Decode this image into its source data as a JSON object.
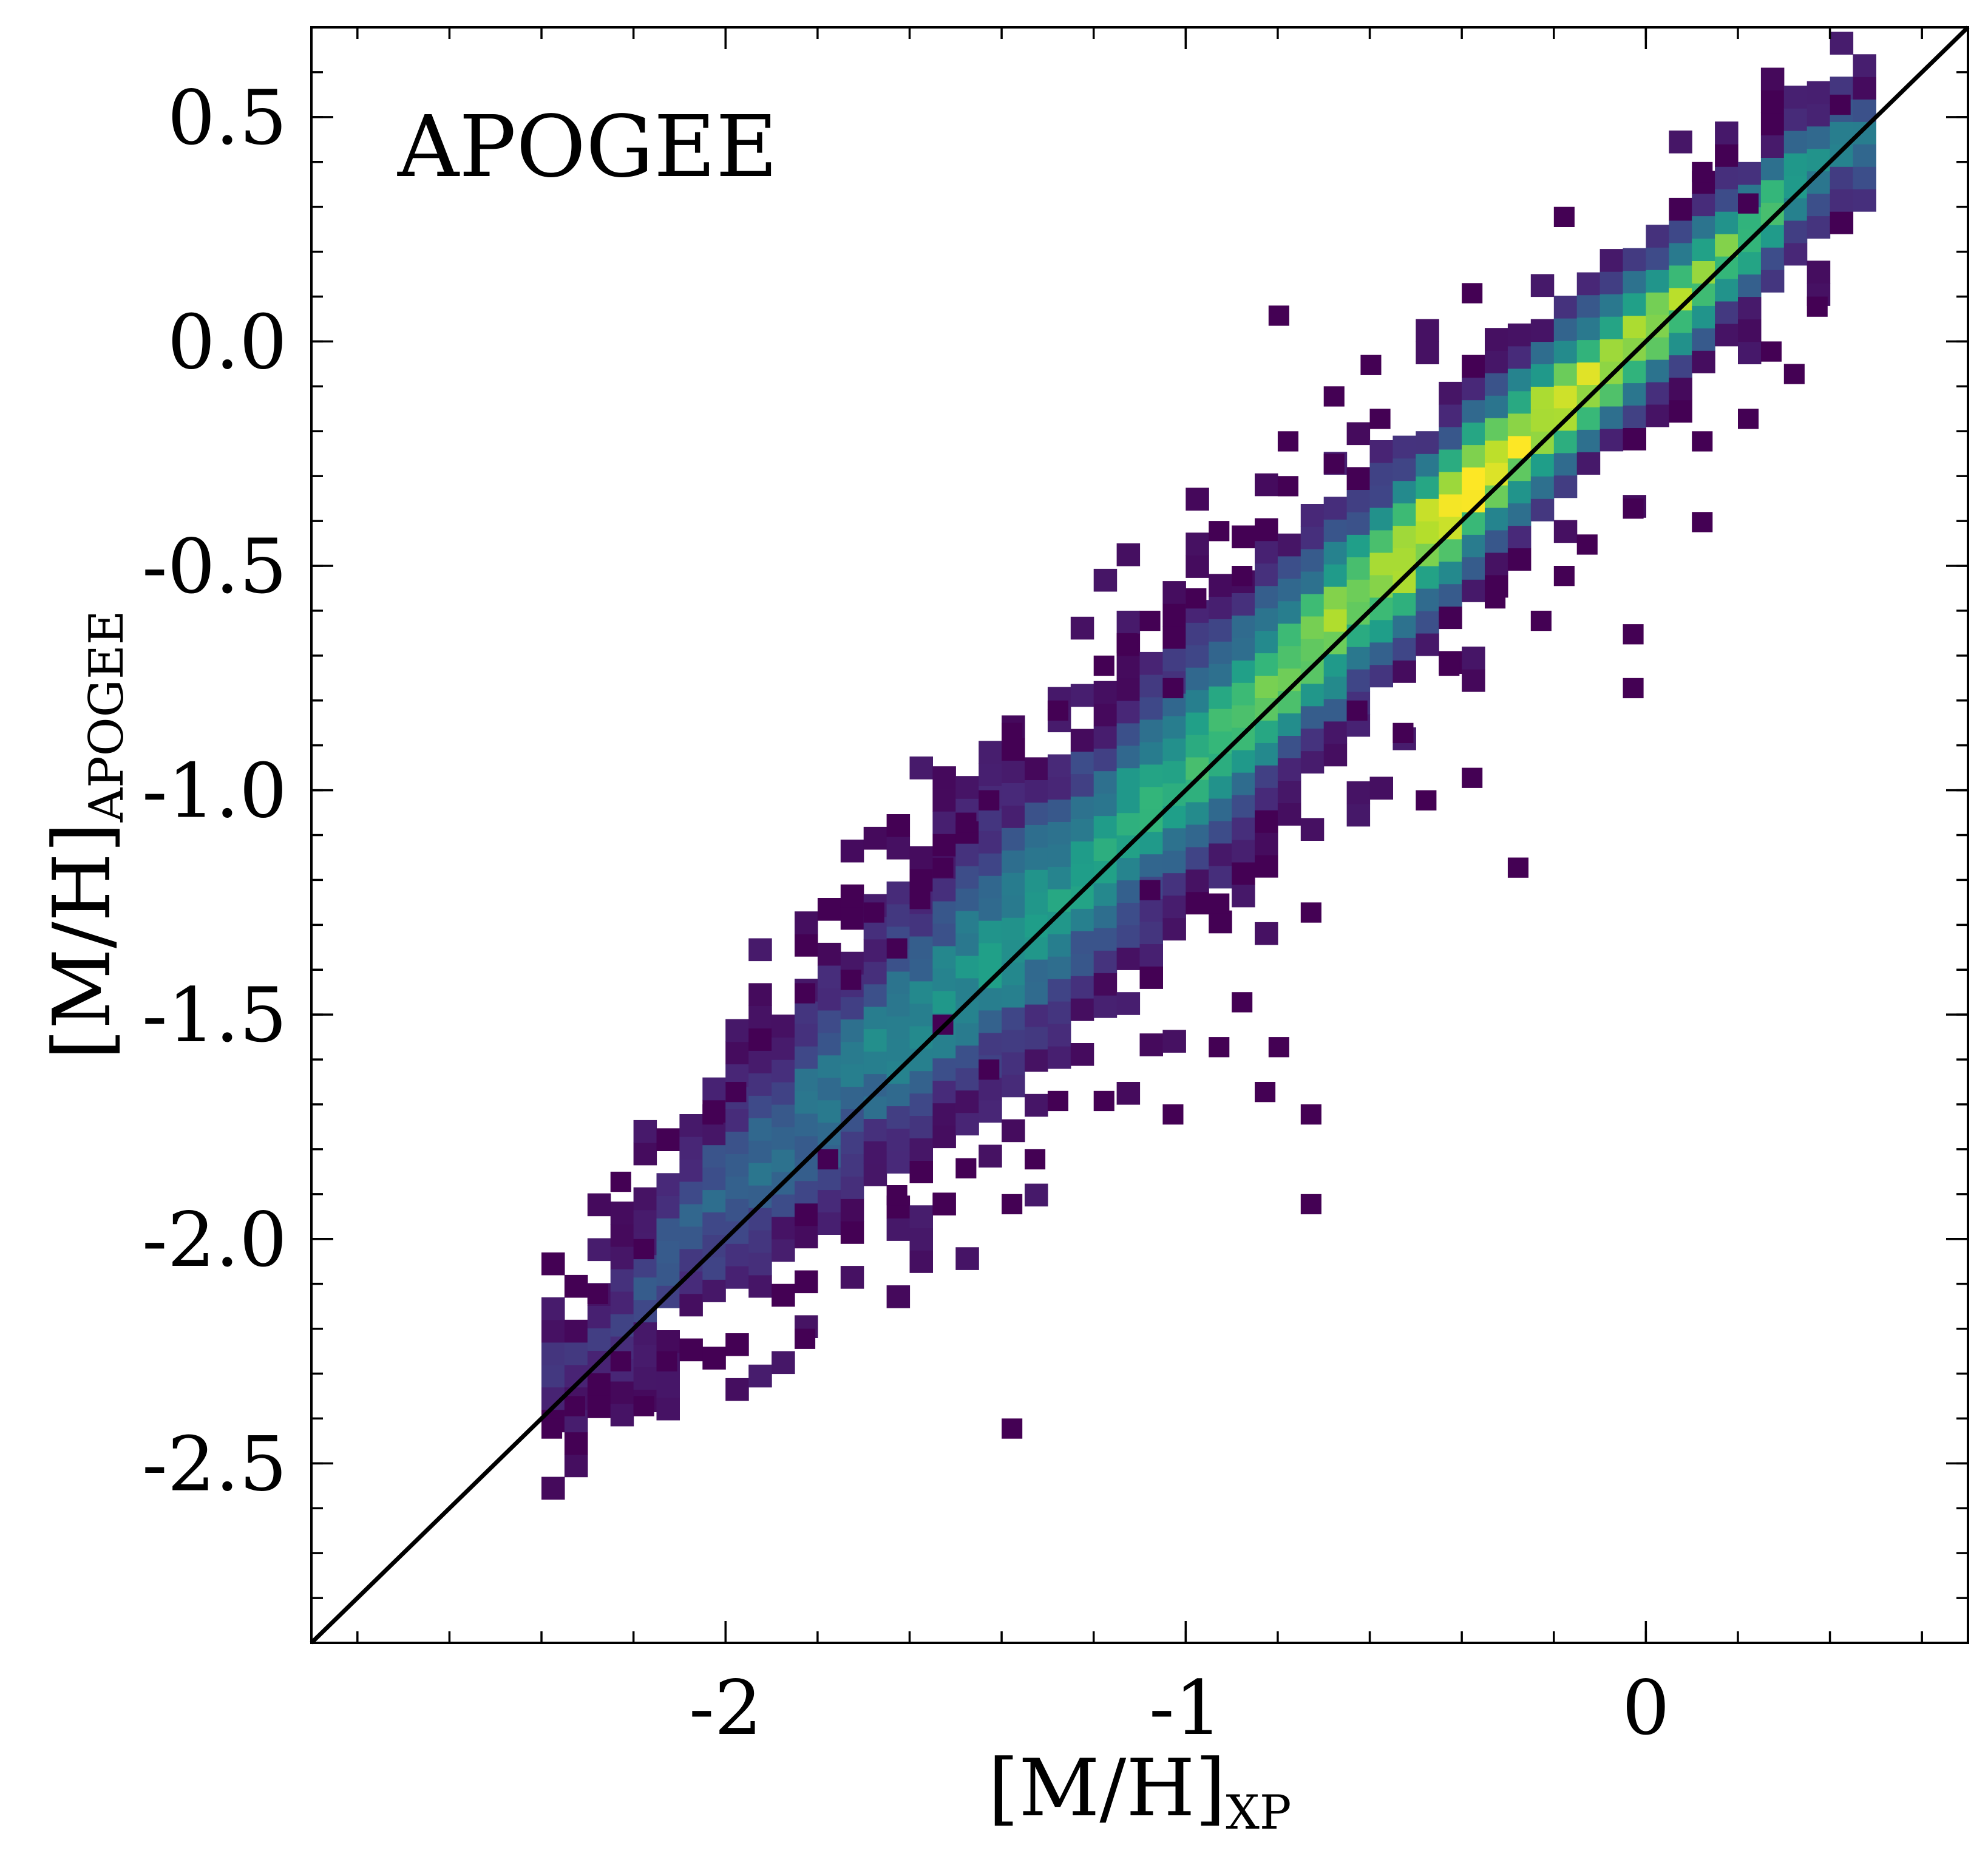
{
  "chart_data": {
    "type": "heatmap",
    "panel_label": "APOGEE",
    "xlabel": {
      "main": "[M/H]",
      "sub": "XP"
    },
    "ylabel": {
      "main": "[M/H]",
      "sub": "APOGEE"
    },
    "xlim": [
      -2.9,
      0.7
    ],
    "ylim": [
      -2.9,
      0.7
    ],
    "x_ticks": [
      {
        "value": -2,
        "label": "-2"
      },
      {
        "value": -1,
        "label": "-1"
      },
      {
        "value": 0,
        "label": "0"
      }
    ],
    "y_ticks": [
      {
        "value": 0.5,
        "label": "0.5"
      },
      {
        "value": 0.0,
        "label": "0.0"
      },
      {
        "value": -0.5,
        "label": "-0.5"
      },
      {
        "value": -1.0,
        "label": "-1.0"
      },
      {
        "value": -1.5,
        "label": "-1.5"
      },
      {
        "value": -2.0,
        "label": "-2.0"
      },
      {
        "value": -2.5,
        "label": "-2.5"
      }
    ],
    "x_minor_step": 0.2,
    "y_minor_step": 0.1,
    "reference_line": {
      "type": "one-to-one",
      "from": [
        -2.9,
        -2.9
      ],
      "to": [
        0.7,
        0.7
      ]
    },
    "grid": false,
    "colormap": "viridis",
    "density_ridge": [
      {
        "x": -2.35,
        "y": -2.3,
        "width": 0.07,
        "peak": 0.12
      },
      {
        "x": -2.05,
        "y": -1.95,
        "width": 0.11,
        "peak": 0.3
      },
      {
        "x": -1.75,
        "y": -1.65,
        "width": 0.14,
        "peak": 0.42
      },
      {
        "x": -1.45,
        "y": -1.4,
        "width": 0.16,
        "peak": 0.5
      },
      {
        "x": -1.15,
        "y": -1.1,
        "width": 0.15,
        "peak": 0.58
      },
      {
        "x": -0.9,
        "y": -0.85,
        "width": 0.14,
        "peak": 0.7
      },
      {
        "x": -0.65,
        "y": -0.6,
        "width": 0.12,
        "peak": 0.85
      },
      {
        "x": -0.45,
        "y": -0.4,
        "width": 0.11,
        "peak": 1.0
      },
      {
        "x": -0.25,
        "y": -0.2,
        "width": 0.1,
        "peak": 0.95
      },
      {
        "x": 0.0,
        "y": 0.02,
        "width": 0.09,
        "peak": 0.85
      },
      {
        "x": 0.2,
        "y": 0.22,
        "width": 0.08,
        "peak": 0.75
      },
      {
        "x": 0.4,
        "y": 0.42,
        "width": 0.07,
        "peak": 0.45
      }
    ],
    "outlier_bins": [
      [
        -0.82,
        0.03
      ],
      [
        -0.62,
        -0.08
      ],
      [
        -0.7,
        -0.15
      ],
      [
        -0.8,
        -0.25
      ],
      [
        -0.95,
        -0.45
      ],
      [
        -1.1,
        -0.65
      ],
      [
        -1.15,
        -0.7
      ],
      [
        -1.05,
        -0.8
      ],
      [
        -1.4,
        -0.9
      ],
      [
        -1.5,
        -1.1
      ],
      [
        -1.55,
        -1.2
      ],
      [
        -1.6,
        -1.27
      ],
      [
        -1.65,
        -1.38
      ],
      [
        -1.75,
        -1.45
      ],
      [
        -2.25,
        -1.9
      ],
      [
        -1.4,
        -1.95
      ],
      [
        -1.55,
        -1.95
      ],
      [
        -1.65,
        -1.93
      ],
      [
        -0.75,
        -1.75
      ],
      [
        -0.85,
        -1.7
      ],
      [
        -0.95,
        -1.6
      ],
      [
        -0.9,
        -1.5
      ],
      [
        -0.82,
        -1.6
      ],
      [
        -1.05,
        -1.75
      ],
      [
        -1.2,
        -1.72
      ],
      [
        -1.45,
        -1.65
      ],
      [
        -1.3,
        -1.72
      ],
      [
        -1.35,
        -1.85
      ],
      [
        -1.5,
        -1.87
      ],
      [
        -1.8,
        -1.85
      ],
      [
        -0.75,
        -1.95
      ],
      [
        -2.15,
        -2.3
      ],
      [
        -2.25,
        -2.3
      ],
      [
        -2.35,
        -2.4
      ],
      [
        -2.2,
        -2.4
      ],
      [
        -2.4,
        -2.45
      ],
      [
        -1.85,
        -2.25
      ],
      [
        -1.4,
        -2.45
      ],
      [
        -0.3,
        -1.2
      ],
      [
        -0.5,
        -1.05
      ],
      [
        -0.4,
        -1.0
      ],
      [
        -0.55,
        -0.9
      ],
      [
        -0.65,
        -0.85
      ],
      [
        -0.45,
        -0.75
      ],
      [
        -0.05,
        -0.8
      ],
      [
        -0.05,
        -0.68
      ],
      [
        -0.25,
        -0.65
      ],
      [
        -0.35,
        -0.6
      ],
      [
        -0.2,
        -0.55
      ],
      [
        -0.15,
        -0.48
      ],
      [
        -0.05,
        -0.4
      ],
      [
        0.1,
        -0.43
      ],
      [
        0.2,
        -0.2
      ],
      [
        0.1,
        -0.25
      ],
      [
        0.25,
        -0.05
      ],
      [
        0.3,
        -0.1
      ],
      [
        0.35,
        0.05
      ],
      [
        0.2,
        0.28
      ],
      [
        0.1,
        0.35
      ],
      [
        0.4,
        0.5
      ],
      [
        -0.2,
        0.25
      ],
      [
        -0.4,
        0.08
      ],
      [
        -0.6,
        -0.2
      ],
      [
        -0.7,
        -0.3
      ],
      [
        -0.8,
        -0.35
      ],
      [
        -0.9,
        -0.55
      ],
      [
        -1.0,
        -0.6
      ],
      [
        -1.2,
        -0.75
      ],
      [
        -1.3,
        -0.85
      ],
      [
        -1.45,
        -1.05
      ],
      [
        -1.7,
        -1.3
      ],
      [
        -1.85,
        -1.48
      ],
      [
        -2.0,
        -1.7
      ],
      [
        -2.05,
        -1.75
      ],
      [
        -2.2,
        -2.05
      ],
      [
        -2.3,
        -2.15
      ],
      [
        -1.55,
        -1.55
      ],
      [
        -1.1,
        -1.25
      ],
      [
        -0.95,
        -1.28
      ],
      [
        -0.75,
        -1.3
      ]
    ]
  }
}
